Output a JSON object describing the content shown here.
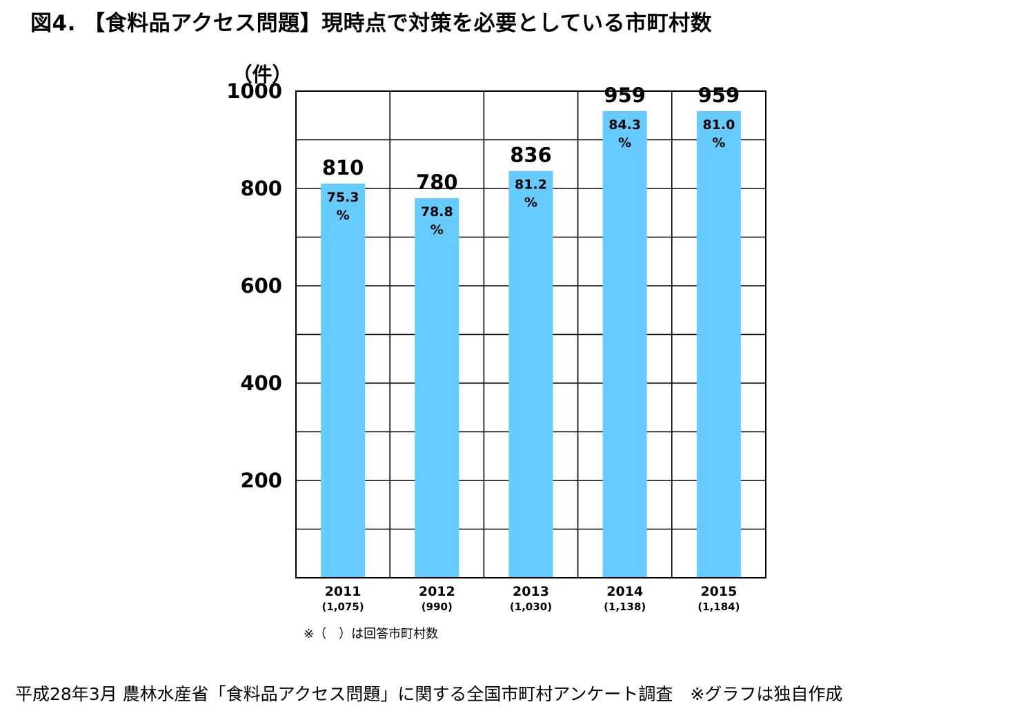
{
  "title": "図4. 【食料品アクセス問題】現時点で対策を必要としている市町村数",
  "chart_data": {
    "type": "bar",
    "ylabel": "（件）",
    "ylim": [
      0,
      1000
    ],
    "y_ticks": [
      200,
      400,
      600,
      800,
      1000
    ],
    "categories": [
      "2011",
      "2012",
      "2013",
      "2014",
      "2015"
    ],
    "category_sublabels": [
      "(1,075)",
      "(990)",
      "(1,030)",
      "(1,138)",
      "(1,184)"
    ],
    "values": [
      810,
      780,
      836,
      959,
      959
    ],
    "value_labels": [
      "810",
      "780",
      "836",
      "959",
      "959"
    ],
    "percentages": [
      "75.3",
      "78.8",
      "81.2",
      "84.3",
      "81.0"
    ],
    "percent_sign": "%",
    "bar_color": "#66ccff",
    "grid": true
  },
  "note": "※（　）は回答市町村数",
  "source": "平成28年3月 農林水産省「食料品アクセス問題」に関する全国市町村アンケート調査　※グラフは独自作成"
}
